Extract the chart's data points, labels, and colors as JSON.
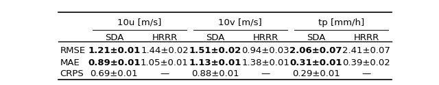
{
  "col_groups": [
    {
      "label": "10u [m/s]",
      "cols": [
        "SDA",
        "HRRR"
      ]
    },
    {
      "label": "10v [m/s]",
      "cols": [
        "SDA",
        "HRRR"
      ]
    },
    {
      "label": "tp [mm/h]",
      "cols": [
        "SDA",
        "HRRR"
      ]
    }
  ],
  "row_labels": [
    "RMSE",
    "MAE",
    "CRPS"
  ],
  "cells": [
    [
      {
        "text": "1.21±0.01",
        "bold": true
      },
      {
        "text": "1.44±0.02",
        "bold": false
      },
      {
        "text": "1.51±0.02",
        "bold": true
      },
      {
        "text": "0.94±0.03",
        "bold": false
      },
      {
        "text": "2.06±0.07",
        "bold": true
      },
      {
        "text": "2.41±0.07",
        "bold": false
      }
    ],
    [
      {
        "text": "0.89±0.01",
        "bold": true
      },
      {
        "text": "1.05±0.01",
        "bold": false
      },
      {
        "text": "1.13±0.01",
        "bold": true
      },
      {
        "text": "1.38±0.01",
        "bold": false
      },
      {
        "text": "0.31±0.01",
        "bold": true
      },
      {
        "text": "0.39±0.02",
        "bold": false
      }
    ],
    [
      {
        "text": "0.69±0.01",
        "bold": false
      },
      {
        "text": "—",
        "bold": false
      },
      {
        "text": "0.88±0.01",
        "bold": false
      },
      {
        "text": "—",
        "bold": false
      },
      {
        "text": "0.29±0.01",
        "bold": false
      },
      {
        "text": "—",
        "bold": false
      }
    ]
  ],
  "background_color": "#ffffff",
  "text_color": "#000000",
  "fontsize": 9.5,
  "header_fontsize": 9.5
}
